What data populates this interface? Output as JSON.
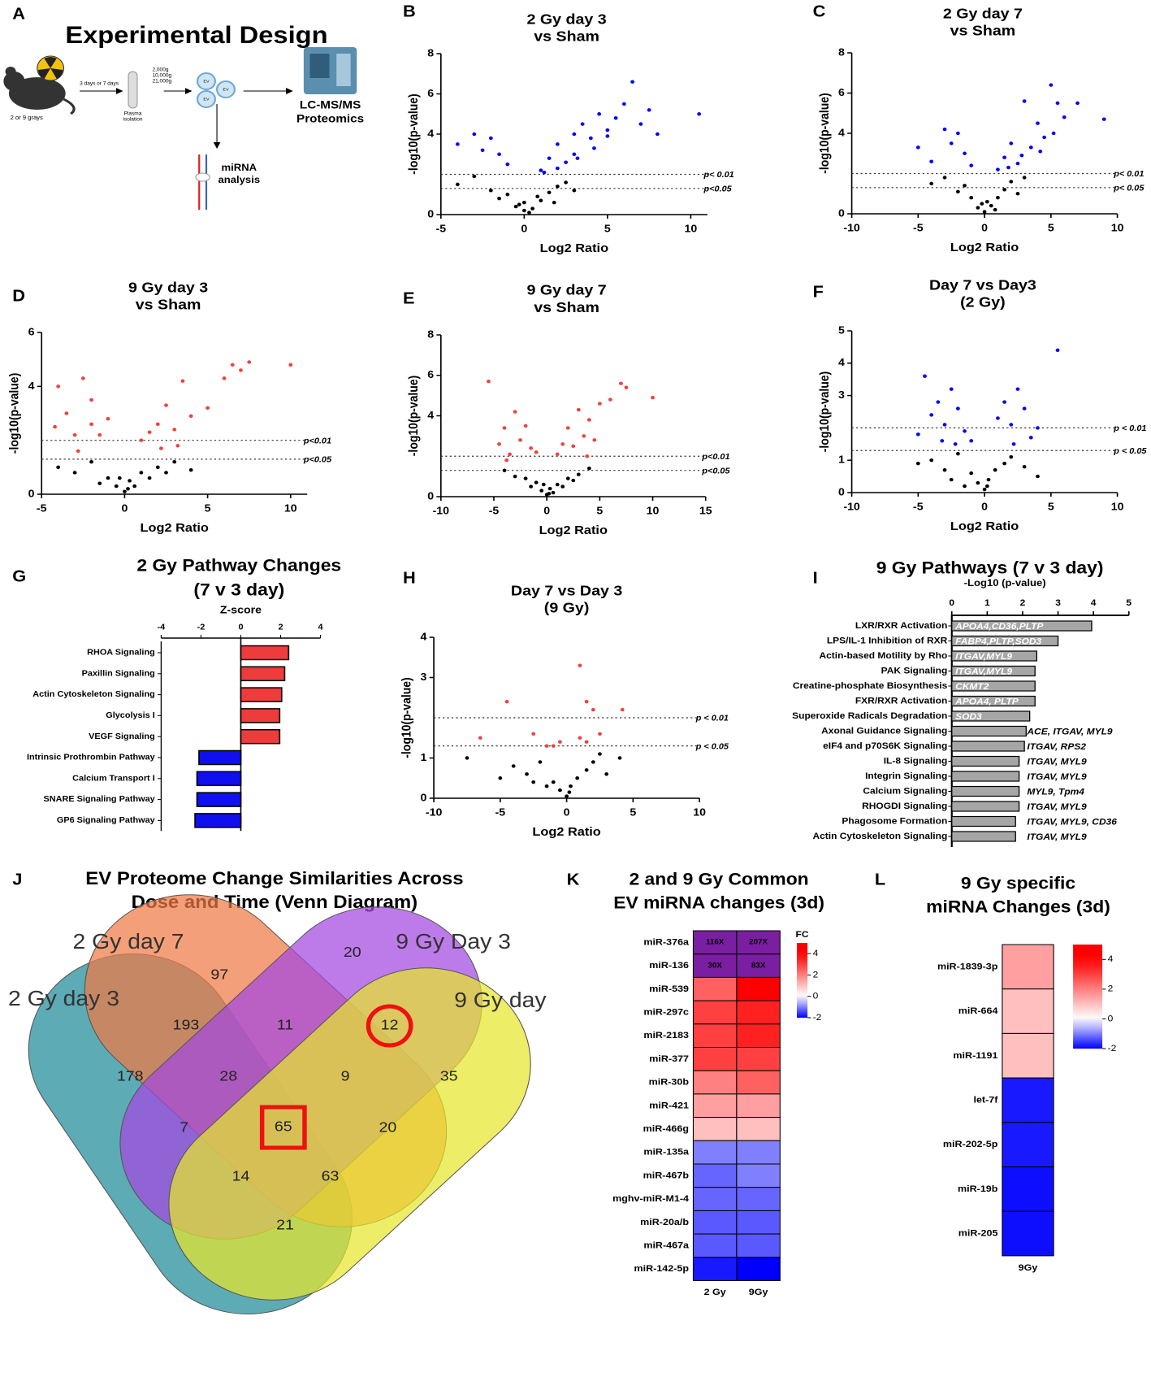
{
  "design": {
    "letter": "A",
    "title": "Experimental Design",
    "dose": "2 or 9 grays",
    "time": "3 days or 7 days",
    "plasma": [
      "Plasma",
      "isolation"
    ],
    "spins": [
      "2,000g",
      "10,000g",
      "21,000g"
    ],
    "ev": "EV",
    "proteomics": [
      "LC-MS/MS",
      "Proteomics"
    ],
    "mirna": [
      "miRNA",
      "analysis"
    ]
  },
  "chart_data": [
    {
      "type": "volcano",
      "letter": "B",
      "title": [
        "2 Gy day 3",
        "vs Sham"
      ],
      "x_label": "Log2 Ratio",
      "y_label": "-log10(p-value)",
      "xlim": [
        -5,
        11
      ],
      "xticks": [
        -5,
        0,
        5,
        10
      ],
      "ylim": [
        0,
        8
      ],
      "yticks": [
        0,
        4,
        6,
        8
      ],
      "thresholds": [
        {
          "value": 2,
          "label": "p< 0.01"
        },
        {
          "value": 1.3,
          "label": "p<0.05"
        }
      ],
      "series": [
        {
          "color": "#0000ff",
          "x": [
            -4,
            -3,
            -2.5,
            -2,
            -1.5,
            -1,
            1,
            1.5,
            2,
            2.5,
            3,
            3,
            3.5,
            4,
            4.5,
            5,
            5.5,
            6,
            6.5,
            7,
            7.5,
            8,
            10.5,
            2,
            3.2,
            4.2,
            1.2,
            5
          ],
          "values": [
            3.5,
            4,
            3.2,
            3.8,
            3,
            2.5,
            2.2,
            2.8,
            3.5,
            2.6,
            4,
            3,
            4.5,
            3.8,
            5,
            4.2,
            4.8,
            5.5,
            6.6,
            4.5,
            5.2,
            4,
            5,
            2.3,
            2.8,
            3.3,
            2.1,
            3.9
          ]
        },
        {
          "color": "#000000",
          "x": [
            -4,
            -2,
            -1.5,
            -1,
            -0.5,
            0,
            0,
            0.5,
            1,
            1.5,
            2,
            2.5,
            -3,
            3,
            0.3,
            -0.3,
            0.8,
            1.8
          ],
          "values": [
            1.5,
            1.2,
            0.8,
            1,
            0.4,
            0.2,
            0.6,
            0.3,
            0.7,
            1.1,
            1.4,
            1.6,
            1.9,
            1.2,
            0.1,
            0.5,
            0.9,
            0.6
          ]
        }
      ]
    },
    {
      "type": "volcano",
      "letter": "C",
      "title": [
        "2 Gy day 7",
        "vs Sham"
      ],
      "x_label": "Log2 Ratio",
      "y_label": "-log10(p-value)",
      "xlim": [
        -10,
        10
      ],
      "xticks": [
        -10,
        -5,
        0,
        5,
        10
      ],
      "ylim": [
        0,
        8
      ],
      "yticks": [
        0,
        4,
        6,
        8
      ],
      "thresholds": [
        {
          "value": 2,
          "label": "p< 0.01"
        },
        {
          "value": 1.3,
          "label": "p< 0.05"
        }
      ],
      "series": [
        {
          "color": "#0000ff",
          "x": [
            -5,
            -4,
            -3,
            -2.5,
            -2,
            -1.5,
            -1,
            1,
            1.5,
            2,
            2.5,
            3,
            3.5,
            4,
            4.5,
            5,
            5.5,
            6,
            7,
            9,
            2.8,
            4.2,
            1.8,
            5.2
          ],
          "values": [
            3.3,
            2.6,
            4.2,
            3.5,
            4,
            3,
            2.4,
            2.2,
            2.8,
            3.5,
            2.5,
            5.6,
            3.3,
            4.5,
            3.8,
            6.4,
            5.5,
            4.8,
            5.5,
            4.7,
            2.9,
            3.1,
            2.3,
            4
          ]
        },
        {
          "color": "#000000",
          "x": [
            -4,
            -3,
            -2,
            -1,
            -0.5,
            0,
            0.2,
            0.5,
            1,
            1.5,
            2,
            3,
            -1.5,
            2.5,
            0.8,
            -0.2
          ],
          "values": [
            1.5,
            1.8,
            1.1,
            0.8,
            0.3,
            0.1,
            0.6,
            0.4,
            0.8,
            1.2,
            1.6,
            1.8,
            1.4,
            1,
            0.2,
            0.5
          ]
        }
      ]
    },
    {
      "type": "volcano",
      "letter": "D",
      "title": [
        "9 Gy day 3",
        "vs Sham"
      ],
      "x_label": "Log2 Ratio",
      "y_label": "-log10(p-value)",
      "xlim": [
        -5,
        11
      ],
      "xticks": [
        -5,
        0,
        5,
        10
      ],
      "ylim": [
        0,
        6
      ],
      "yticks": [
        0,
        4,
        6
      ],
      "thresholds": [
        {
          "value": 2,
          "label": "p<0.01"
        },
        {
          "value": 1.3,
          "label": "p<0.05"
        }
      ],
      "series": [
        {
          "color": "#f04040",
          "x": [
            -4,
            -4.2,
            -3.5,
            -3,
            -2.5,
            -2,
            -2,
            -1.5,
            -1,
            1,
            1.5,
            2,
            2.5,
            3,
            3.5,
            4,
            5,
            6,
            6.5,
            7,
            7.5,
            10,
            2.2,
            3.2,
            -2.8
          ],
          "values": [
            4,
            2.5,
            3,
            2.2,
            4.3,
            3.5,
            2.6,
            2.2,
            2.8,
            2,
            2.3,
            2.6,
            3.3,
            2.4,
            4.2,
            2.9,
            3.2,
            4.3,
            4.8,
            4.6,
            4.9,
            4.8,
            1.7,
            1.8,
            1.6
          ]
        },
        {
          "color": "#000000",
          "x": [
            -4,
            -3,
            -2,
            -1,
            -0.5,
            0,
            0.3,
            0.6,
            1,
            1.5,
            2,
            3,
            4,
            -1.5,
            0.2,
            -0.3,
            2.5
          ],
          "values": [
            1,
            0.8,
            1.2,
            0.6,
            0.3,
            0.1,
            0.5,
            0.3,
            0.8,
            0.6,
            1,
            1.2,
            0.9,
            0.4,
            0.2,
            0.6,
            0.8
          ]
        }
      ]
    },
    {
      "type": "volcano",
      "letter": "E",
      "title": [
        "9 Gy day 7",
        "vs Sham"
      ],
      "x_label": "Log2 Ratio",
      "y_label": "-log10(p-value)",
      "xlim": [
        -10,
        15
      ],
      "xticks": [
        -10,
        -5,
        0,
        5,
        10,
        15
      ],
      "ylim": [
        0,
        8
      ],
      "yticks": [
        0,
        4,
        6,
        8
      ],
      "thresholds": [
        {
          "value": 2,
          "label": "p<0.01"
        },
        {
          "value": 1.3,
          "label": "p<0.05"
        }
      ],
      "series": [
        {
          "color": "#f04040",
          "x": [
            -5.5,
            -4.5,
            -4,
            -3.5,
            -3,
            -2.5,
            -2,
            -1.5,
            -1,
            1,
            1.5,
            2,
            2.5,
            3,
            3.5,
            4,
            4.5,
            5,
            6,
            7,
            7.5,
            10,
            -3.8,
            3.8
          ],
          "values": [
            5.7,
            2.6,
            3.4,
            2.1,
            4.2,
            2.8,
            3.5,
            2.4,
            2.2,
            2.1,
            2.6,
            3.4,
            2.5,
            4.3,
            3,
            3.8,
            2.8,
            4.6,
            4.8,
            5.6,
            5.4,
            4.9,
            1.8,
            2
          ]
        },
        {
          "color": "#000000",
          "x": [
            -4,
            -3,
            -2,
            -1,
            -0.5,
            0,
            0.3,
            0.6,
            1,
            1.5,
            2,
            3,
            4,
            -1.5,
            0.2,
            -0.3,
            2.5
          ],
          "values": [
            1.3,
            1,
            0.9,
            0.7,
            0.3,
            0.1,
            0.4,
            0.2,
            0.6,
            0.5,
            0.9,
            1.1,
            1.4,
            0.5,
            0.15,
            0.6,
            0.8
          ]
        }
      ]
    },
    {
      "type": "volcano",
      "letter": "F",
      "title": [
        "Day 7 vs Day3",
        "(2 Gy)"
      ],
      "x_label": "Log2 Ratio",
      "y_label": "-log10(p-value)",
      "xlim": [
        -10,
        10
      ],
      "xticks": [
        -10,
        -5,
        0,
        5,
        10
      ],
      "ylim": [
        0,
        5
      ],
      "yticks": [
        0,
        1,
        3,
        4,
        5
      ],
      "thresholds": [
        {
          "value": 2,
          "label": "p < 0.01"
        },
        {
          "value": 1.3,
          "label": "p < 0.05"
        }
      ],
      "series": [
        {
          "color": "#0000ff",
          "x": [
            -5,
            -4.5,
            -4,
            -3.5,
            -3,
            -2.5,
            -2,
            -1.5,
            -1,
            1,
            1.5,
            2,
            2.5,
            3,
            3.5,
            4,
            5.5,
            -2.2,
            -3.2,
            2.2
          ],
          "values": [
            1.8,
            3.6,
            2.4,
            2.8,
            2.1,
            3.2,
            2.6,
            1.9,
            1.6,
            2.3,
            2.8,
            2.1,
            3.2,
            2.6,
            1.7,
            2,
            4.4,
            1.5,
            1.6,
            1.5
          ]
        },
        {
          "color": "#000000",
          "x": [
            -5,
            -4,
            -3,
            -2,
            -1,
            -0.5,
            0,
            0.3,
            0.8,
            1.5,
            2,
            3,
            4,
            -1.5,
            0.2,
            -2.5
          ],
          "values": [
            0.9,
            1,
            0.7,
            1.2,
            0.6,
            0.3,
            0.1,
            0.4,
            0.7,
            0.9,
            1.1,
            0.8,
            0.5,
            0.2,
            0.2,
            0.4
          ]
        }
      ]
    },
    {
      "type": "hbar",
      "letter": "G",
      "title": [
        "2 Gy Pathway Changes",
        "(7 v 3 day)"
      ],
      "x_label": "Z-score",
      "xlim": [
        -4,
        4
      ],
      "xticks": [
        -4,
        -2,
        0,
        2,
        4
      ],
      "categories": [
        "RHOA Signaling",
        "Paxillin Signaling",
        "Actin Cytoskeleton Signaling",
        "Glycolysis I",
        "VEGF Signaling",
        "Intrinsic Prothrombin Pathway",
        "Calcium Transport I",
        "SNARE Signaling Pathway",
        "GP6 Signaling Pathway"
      ],
      "values": [
        2.4,
        2.2,
        2.05,
        1.95,
        1.95,
        -2.1,
        -2.2,
        -2.2,
        -2.3
      ],
      "colors": [
        "#ee3b3b",
        "#ee3b3b",
        "#ee3b3b",
        "#ee3b3b",
        "#ee3b3b",
        "#1010ee",
        "#1010ee",
        "#1010ee",
        "#1010ee"
      ]
    },
    {
      "type": "volcano",
      "letter": "H",
      "title": [
        "Day 7 vs Day 3",
        "(9 Gy)"
      ],
      "x_label": "Log2 Ratio",
      "y_label": "-log10(p-value)",
      "xlim": [
        -10,
        10
      ],
      "xticks": [
        -10,
        -5,
        0,
        5,
        10
      ],
      "ylim": [
        0,
        4
      ],
      "yticks": [
        0,
        1,
        3,
        4
      ],
      "thresholds": [
        {
          "value": 2,
          "label": "p < 0.01"
        },
        {
          "value": 1.3,
          "label": "p < 0.05"
        }
      ],
      "series": [
        {
          "color": "#f04040",
          "x": [
            -6.5,
            -4.5,
            -2.5,
            -1.5,
            -0.5,
            1,
            1,
            1.5,
            2,
            2.5,
            4.2,
            1.5,
            -1
          ],
          "values": [
            1.5,
            2.4,
            1.6,
            1.3,
            1.4,
            1.5,
            3.3,
            2.4,
            2.2,
            1.6,
            2.2,
            1.4,
            1.3
          ]
        },
        {
          "color": "#000000",
          "x": [
            -7.5,
            -5,
            -4,
            -3,
            -2,
            -1,
            -0.5,
            0,
            0.3,
            0.8,
            1.5,
            2,
            3,
            4,
            -1.5,
            0.2,
            2.5,
            -2.5
          ],
          "values": [
            1,
            0.5,
            0.8,
            0.6,
            0.9,
            0.4,
            0.2,
            0.05,
            0.3,
            0.5,
            0.7,
            0.9,
            0.6,
            1,
            0.3,
            0.15,
            1.1,
            0.4
          ]
        }
      ]
    },
    {
      "type": "hbar_pathway",
      "letter": "I",
      "title": [
        "9 Gy Pathways (7 v 3 day)"
      ],
      "x_label": "-Log10 (p-value)",
      "xlim": [
        0,
        5
      ],
      "xticks": [
        0,
        1,
        2,
        3,
        4,
        5
      ],
      "color": "#a6a6a6",
      "categories": [
        "LXR/RXR Activation",
        "LPS/IL-1 Inhibition of RXR",
        "Actin-based Motility by Rho",
        "PAK Signaling",
        "Creatine-phosphate Biosynthesis",
        "FXR/RXR Activation",
        "Superoxide Radicals Degradation",
        "Axonal Guidance Signaling",
        "eIF4 and p70S6K Signaling",
        "IL-8 Signaling",
        "Integrin Signaling",
        "Calcium Signaling",
        "RHOGDI Signaling",
        "Phagosome Formation",
        "Actin Cytoskeleton Signaling"
      ],
      "values": [
        3.95,
        3.0,
        2.4,
        2.35,
        2.35,
        2.35,
        2.2,
        2.1,
        2.05,
        1.9,
        1.9,
        1.9,
        1.9,
        1.8,
        1.8
      ],
      "gene_labels": [
        "APOA4,CD36,PLTP",
        "FABP4,PLTP,SOD3",
        "ITGAV,MYL9",
        "ITGAV,MYL9",
        "CKMT2",
        "APOA4, PLTP",
        "SOD3",
        "ACE, ITGAV, MYL9",
        "ITGAV, RPS2",
        "ITGAV, MYL9",
        "ITGAV, MYL9",
        "MYL9, Tpm4",
        "ITGAV, MYL9",
        "ITGAV, MYL9, CD36",
        "ITGAV, MYL9"
      ],
      "label_positions": [
        "inside",
        "inside",
        "inside",
        "inside",
        "inside",
        "inside",
        "inside",
        "outside",
        "outside",
        "outside",
        "outside",
        "outside",
        "outside",
        "outside",
        "outside"
      ]
    },
    {
      "type": "heatmap",
      "letter": "K",
      "title": [
        "2 and 9 Gy Common",
        "EV miRNA changes (3d)"
      ],
      "rows": [
        "miR-376a",
        "miR-136",
        "miR-539",
        "miR-297c",
        "miR-2183",
        "miR-377",
        "miR-30b",
        "miR-421",
        "miR-466g",
        "miR-135a",
        "miR-467b",
        "mghv-miR-M1-4",
        "miR-20a/b",
        "miR-467a",
        "miR-142-5p"
      ],
      "columns": [
        "2 Gy",
        "9Gy"
      ],
      "values": [
        [
          116,
          207
        ],
        [
          30,
          83
        ],
        [
          2.5,
          4.5
        ],
        [
          3,
          3.5
        ],
        [
          3,
          3.5
        ],
        [
          3,
          3
        ],
        [
          2,
          2.5
        ],
        [
          1.5,
          1.5
        ],
        [
          1,
          1
        ],
        [
          -1,
          -1
        ],
        [
          -1.2,
          -1
        ],
        [
          -1.2,
          -1.2
        ],
        [
          -1.3,
          -1.3
        ],
        [
          -1.3,
          -1.3
        ],
        [
          -1.8,
          -2
        ]
      ],
      "value_labels": [
        [
          "116X",
          "207X"
        ],
        [
          "30X",
          "83X"
        ]
      ],
      "over_color": "#7b1fa2",
      "colorbar": {
        "label": "FC",
        "zlim": [
          -2,
          5
        ],
        "ticks": [
          4,
          2,
          0,
          -2
        ]
      }
    },
    {
      "type": "heatmap",
      "letter": "L",
      "title": [
        "9 Gy specific",
        "miRNA Changes (3d)"
      ],
      "rows": [
        "miR-1839-3p",
        "miR-664",
        "miR-1191",
        "let-7f",
        "miR-202-5p",
        "miR-19b",
        "miR-205"
      ],
      "columns": [
        "9Gy"
      ],
      "values": [
        [
          1.5
        ],
        [
          1
        ],
        [
          1
        ],
        [
          -1.8
        ],
        [
          -1.8
        ],
        [
          -1.9
        ],
        [
          -1.9
        ]
      ],
      "over_color": "#7b1fa2",
      "colorbar": {
        "zlim": [
          -2,
          5
        ],
        "ticks": [
          4,
          2,
          0,
          -2
        ]
      }
    }
  ],
  "venn": {
    "letter": "J",
    "title": [
      "EV Proteome Change Similarities Across",
      "Dose and Time (Venn Diagram)"
    ],
    "sets": [
      "2 Gy day 3",
      "2 Gy day 7",
      "9 Gy Day 3",
      "9 Gy day"
    ],
    "counts": [
      97,
      20,
      193,
      11,
      12,
      178,
      28,
      9,
      35,
      7,
      65,
      20,
      14,
      63,
      21
    ]
  }
}
